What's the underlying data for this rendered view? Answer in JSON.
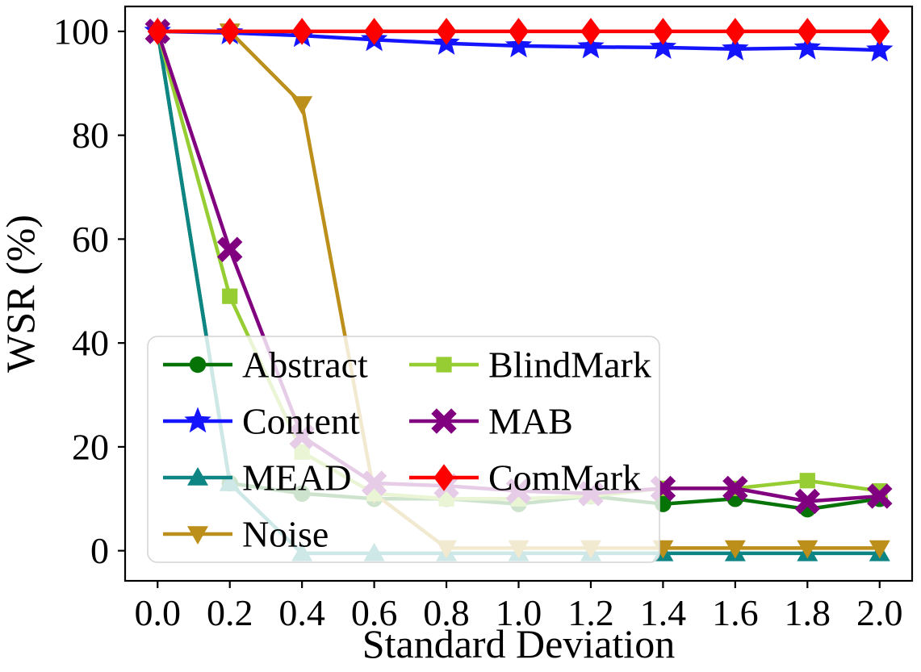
{
  "figure": {
    "background": "#ffffff",
    "axis_color": "#000000"
  },
  "chart_data": {
    "type": "line",
    "title": "",
    "xlabel": "Standard Deviation",
    "ylabel": "WSR (%)",
    "grid": false,
    "xlim": [
      -0.09,
      2.09
    ],
    "ylim": [
      -5.8,
      104.8
    ],
    "x": [
      0.0,
      0.2,
      0.4,
      0.6,
      0.8,
      1.0,
      1.2,
      1.4,
      1.6,
      1.8,
      2.0
    ],
    "xticks": {
      "values": [
        0.0,
        0.2,
        0.4,
        0.6,
        0.8,
        1.0,
        1.2,
        1.4,
        1.6,
        1.8,
        2.0
      ],
      "labels": [
        "0.0",
        "0.2",
        "0.4",
        "0.6",
        "0.8",
        "1.0",
        "1.2",
        "1.4",
        "1.6",
        "1.8",
        "2.0"
      ]
    },
    "yticks": {
      "values": [
        0,
        20,
        40,
        60,
        80,
        100
      ],
      "labels": [
        "0",
        "20",
        "40",
        "60",
        "80",
        "100"
      ]
    },
    "series": [
      {
        "name": "Abstract",
        "color": "#067306",
        "marker": "circle",
        "values": [
          100,
          13,
          11,
          10,
          10,
          9,
          10.5,
          9,
          10,
          8,
          10
        ]
      },
      {
        "name": "Content",
        "color": "#1414ff",
        "marker": "star",
        "values": [
          100,
          99.7,
          99.2,
          98.4,
          97.7,
          97.2,
          97.0,
          96.9,
          96.6,
          96.8,
          96.4
        ]
      },
      {
        "name": "MEAD",
        "color": "#0d8585",
        "marker": "triangle-up",
        "values": [
          100,
          13,
          -0.5,
          -0.5,
          -0.5,
          -0.5,
          -0.5,
          -0.5,
          -0.5,
          -0.5,
          -0.5
        ]
      },
      {
        "name": "Noise",
        "color": "#bc8f1a",
        "marker": "triangle-down",
        "values": [
          100,
          100,
          86,
          11,
          0.5,
          0.5,
          0.5,
          0.5,
          0.5,
          0.5,
          0.5
        ]
      },
      {
        "name": "BlindMark",
        "color": "#96cd32",
        "marker": "square",
        "values": [
          100,
          49,
          19,
          11,
          10,
          10,
          10.5,
          12,
          12,
          13.5,
          11.5
        ]
      },
      {
        "name": "MAB",
        "color": "#800080",
        "marker": "x",
        "values": [
          100,
          58,
          22,
          13,
          12.5,
          11.5,
          11,
          12,
          12,
          9.5,
          10.5
        ]
      },
      {
        "name": "ComMark",
        "color": "#ff0000",
        "marker": "diamond",
        "values": [
          100,
          100,
          100,
          100,
          100,
          100,
          100,
          100,
          100,
          100,
          100
        ]
      }
    ],
    "legend": {
      "position": "lower left",
      "columns": 2,
      "labels": [
        "Abstract",
        "Content",
        "MEAD",
        "Noise",
        "BlindMark",
        "MAB",
        "ComMark"
      ],
      "frame_alpha": 0.8,
      "frame_color": "#d4d4d4"
    }
  }
}
